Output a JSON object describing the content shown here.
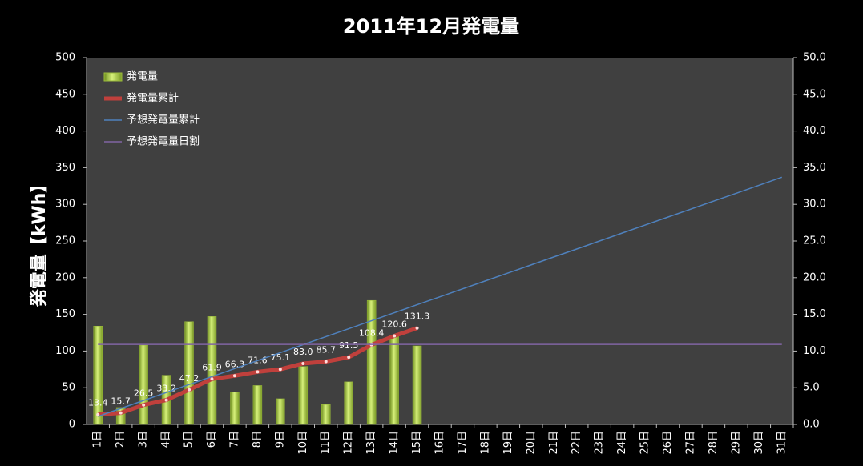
{
  "chart_data": {
    "type": "bar",
    "title": "2011年12月発電量",
    "y_label": "発電量【kWh】",
    "categories": [
      "1日",
      "2日",
      "3日",
      "4日",
      "5日",
      "6日",
      "7日",
      "8日",
      "9日",
      "10日",
      "11日",
      "12日",
      "13日",
      "14日",
      "15日",
      "16日",
      "17日",
      "18日",
      "19日",
      "20日",
      "21日",
      "22日",
      "23日",
      "24日",
      "25日",
      "26日",
      "27日",
      "28日",
      "29日",
      "30日",
      "31日"
    ],
    "series": [
      {
        "name": "発電量",
        "type": "bar",
        "axis": "y2",
        "color": "#9bbb3b",
        "values": [
          13.4,
          2.3,
          10.8,
          6.7,
          14.0,
          14.7,
          4.4,
          5.3,
          3.5,
          7.9,
          2.7,
          5.8,
          16.9,
          12.2,
          10.7,
          null,
          null,
          null,
          null,
          null,
          null,
          null,
          null,
          null,
          null,
          null,
          null,
          null,
          null,
          null,
          null
        ]
      },
      {
        "name": "発電量累計",
        "type": "line",
        "axis": "y",
        "color": "#c0403c",
        "values": [
          13.4,
          15.7,
          26.5,
          33.2,
          47.2,
          61.9,
          66.3,
          71.6,
          75.1,
          83.0,
          85.7,
          91.5,
          108.4,
          120.6,
          131.3,
          null,
          null,
          null,
          null,
          null,
          null,
          null,
          null,
          null,
          null,
          null,
          null,
          null,
          null,
          null,
          null
        ],
        "value_labels": [
          "13.4",
          "15.7",
          "26.5",
          "33.2",
          "47.2",
          "61.9",
          "66.3",
          "71.6",
          "75.1",
          "83.0",
          "85.7",
          "91.5",
          "108.4",
          "120.6",
          "131.3",
          null,
          null,
          null,
          null,
          null,
          null,
          null,
          null,
          null,
          null,
          null,
          null,
          null,
          null,
          null,
          null
        ]
      },
      {
        "name": "予想発電量累計",
        "type": "line",
        "axis": "y",
        "color": "#4f81bd",
        "values": [
          10.9,
          21.7,
          32.6,
          43.5,
          54.4,
          65.2,
          76.1,
          87.0,
          97.8,
          108.7,
          119.6,
          130.4,
          141.3,
          152.2,
          163.1,
          173.9,
          184.8,
          195.7,
          206.5,
          217.4,
          228.3,
          239.1,
          250.0,
          260.9,
          271.8,
          282.6,
          293.5,
          304.4,
          315.2,
          326.1,
          337.0
        ]
      },
      {
        "name": "予想発電量日割",
        "type": "line",
        "axis": "y2",
        "color": "#8064a2",
        "values": [
          10.9,
          10.9,
          10.9,
          10.9,
          10.9,
          10.9,
          10.9,
          10.9,
          10.9,
          10.9,
          10.9,
          10.9,
          10.9,
          10.9,
          10.9,
          10.9,
          10.9,
          10.9,
          10.9,
          10.9,
          10.9,
          10.9,
          10.9,
          10.9,
          10.9,
          10.9,
          10.9,
          10.9,
          10.9,
          10.9,
          10.9
        ]
      }
    ],
    "ylim": [
      0,
      500
    ],
    "yticks": [
      0,
      50,
      100,
      150,
      200,
      250,
      300,
      350,
      400,
      450,
      500
    ],
    "y2lim": [
      0,
      50
    ],
    "y2ticks": [
      {
        "value": 0,
        "label": "0.0"
      },
      {
        "value": 5,
        "label": "5.0"
      },
      {
        "value": 10,
        "label": "10.0"
      },
      {
        "value": 15,
        "label": "15.0"
      },
      {
        "value": 20,
        "label": "20.0"
      },
      {
        "value": 25,
        "label": "25.0"
      },
      {
        "value": 30,
        "label": "30.0"
      },
      {
        "value": 35,
        "label": "35.0"
      },
      {
        "value": 40,
        "label": "40.0"
      },
      {
        "value": 45,
        "label": "45.0"
      },
      {
        "value": 50,
        "label": "50.0"
      }
    ],
    "grid": false,
    "legend": "top-left"
  }
}
